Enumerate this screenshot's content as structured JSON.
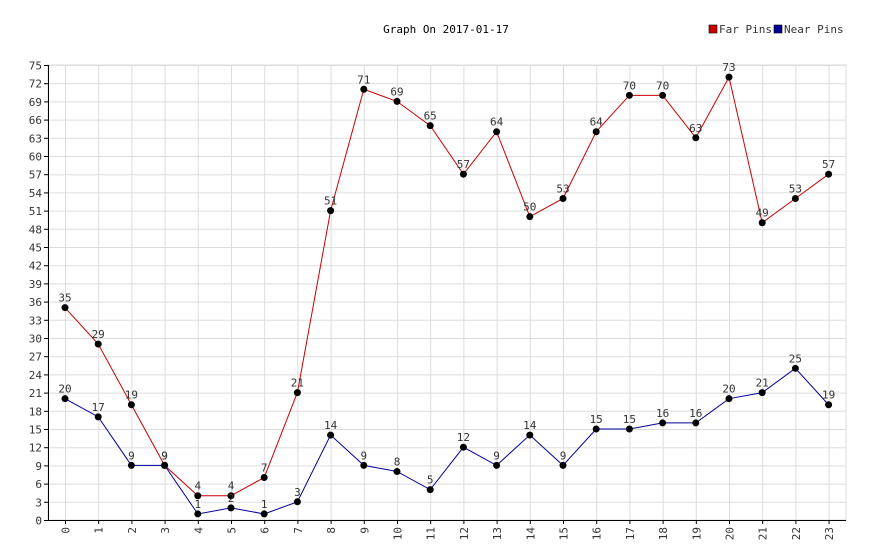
{
  "chart_data": {
    "type": "line",
    "title": "Graph On 2017-01-17",
    "xlabel": "",
    "ylabel": "",
    "ylim": [
      0,
      75
    ],
    "yticks": [
      0,
      3,
      6,
      9,
      12,
      15,
      18,
      21,
      24,
      27,
      30,
      33,
      36,
      39,
      42,
      45,
      48,
      51,
      54,
      57,
      60,
      63,
      66,
      69,
      72,
      75
    ],
    "grid": true,
    "legend_position": "top-right",
    "categories": [
      "0",
      "1",
      "2",
      "3",
      "4",
      "5",
      "6",
      "7",
      "8",
      "9",
      "10",
      "11",
      "12",
      "13",
      "14",
      "15",
      "16",
      "17",
      "18",
      "19",
      "20",
      "21",
      "22",
      "23"
    ],
    "series": [
      {
        "name": "Far Pins",
        "color": "#cc0000",
        "values": [
          35,
          29,
          19,
          9,
          4,
          4,
          7,
          21,
          51,
          71,
          69,
          65,
          57,
          64,
          50,
          53,
          64,
          70,
          70,
          63,
          73,
          49,
          53,
          57
        ]
      },
      {
        "name": "Near Pins",
        "color": "#000099",
        "values": [
          20,
          17,
          9,
          9,
          1,
          2,
          1,
          3,
          14,
          9,
          8,
          5,
          12,
          9,
          14,
          9,
          15,
          15,
          16,
          16,
          20,
          21,
          25,
          19
        ]
      }
    ],
    "marker_color": "#000000",
    "grid_color": "#dddddd",
    "axis_color": "#000000",
    "text_color": "#333333"
  }
}
